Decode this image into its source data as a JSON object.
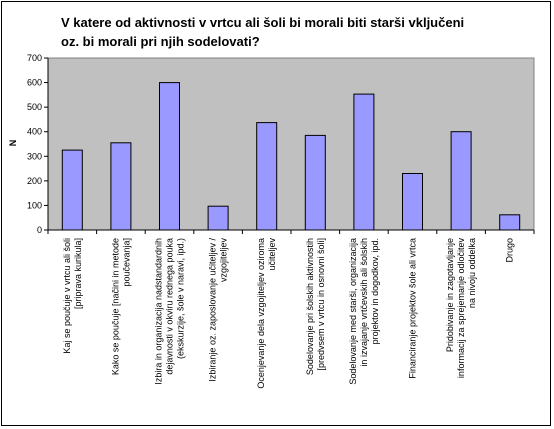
{
  "chart_data": {
    "type": "bar",
    "title_lines": [
      "V katere od aktivnosti v vrtcu ali šoli bi morali biti starši vključeni",
      "oz. bi morali pri njih sodelovati?"
    ],
    "ylabel": "N",
    "xlabel": "",
    "ylim": [
      0,
      700
    ],
    "yticks": [
      0,
      100,
      200,
      300,
      400,
      500,
      600,
      700
    ],
    "grid": false,
    "legend": "none",
    "plot_background": "#c0c0c0",
    "bar_color": "#9999ff",
    "bar_outline": "#000000",
    "categories": [
      [
        "Kaj se poučuje v vrtcu ali šoli",
        "[priprava kurikula]"
      ],
      [
        "Kako se poučuje [načini in metode",
        "poučevanja]"
      ],
      [
        "Izbira in organizacija nadstandardnih",
        "dejavnosti v okviru rednega pouka",
        "(ekskurzije, šole v naravi, ipd.)"
      ],
      [
        "Izbiranje oz. zaposlovanje učiteljev /",
        "vzgojiteljev"
      ],
      [
        "Ocenjevanje dela vzgojiteljev oziroma",
        "učiteljev"
      ],
      [
        "Sodelovanje pri šolskih aktivnostih",
        "[predvsem v vrtcu in osnovni šoli]"
      ],
      [
        "Sodelovanje med starši, organizacija",
        "in izvajanje vrtčevskih ali šolskih",
        "projektov in dogodkov, ipd."
      ],
      [
        "Financiranje projektov šole ali vrtca"
      ],
      [
        "Pridobivanje in zagotavljanje",
        "informacij za sprejemanje odločitev",
        "na nivoju oddelka"
      ],
      [
        "Drugo"
      ]
    ],
    "values": [
      325,
      355,
      600,
      97,
      437,
      385,
      553,
      230,
      400,
      62
    ]
  }
}
